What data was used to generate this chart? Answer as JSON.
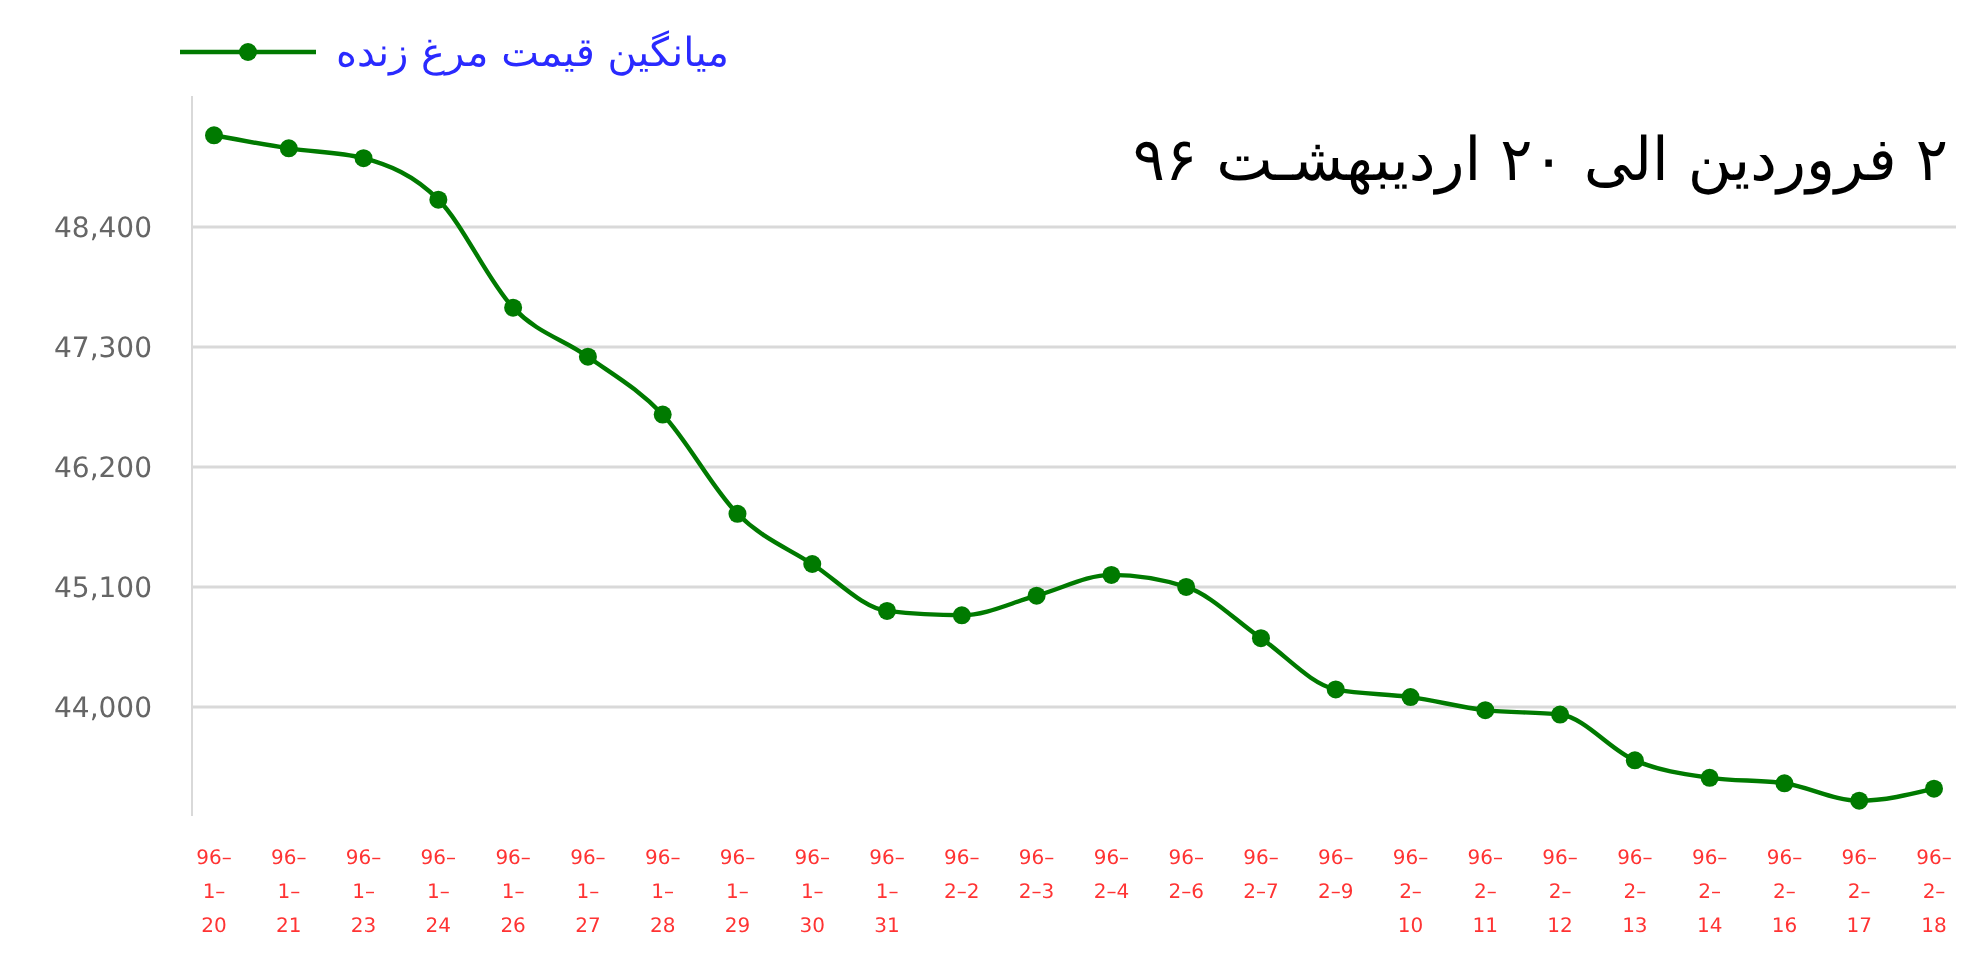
{
  "chart_data": {
    "type": "line",
    "title": "۲ فروردین الی ۲۰ اردیبهشـت ۹۶",
    "categories": [
      "96–1–20",
      "96–1–21",
      "96–1–23",
      "96–1–24",
      "96–1–26",
      "96–1–27",
      "96–1–28",
      "96–1–29",
      "96–1–30",
      "96–1–31",
      "96–2–2",
      "96–2–3",
      "96–2–4",
      "96–2–6",
      "96–2–7",
      "96–2–9",
      "96–2–10",
      "96–2–11",
      "96–2–12",
      "96–2–13",
      "96–2–14",
      "96–2–16",
      "96–2–17",
      "96–2–18"
    ],
    "series": [
      {
        "name": "میانگین قیمت مرغ زنده",
        "color": "#007a00",
        "values": [
          49240,
          49120,
          49030,
          48650,
          47660,
          47210,
          46680,
          45770,
          45310,
          44880,
          44840,
          45020,
          45210,
          45100,
          44630,
          44160,
          44090,
          43970,
          43930,
          43510,
          43350,
          43300,
          43140,
          43250
        ]
      }
    ],
    "ylim": [
      43000,
      49600
    ],
    "yticks": [
      {
        "value": 44000,
        "label": "44,000"
      },
      {
        "value": 45100,
        "label": "45,100"
      },
      {
        "value": 46200,
        "label": "46,200"
      },
      {
        "value": 47300,
        "label": "47,300"
      },
      {
        "value": 48400,
        "label": "48,400"
      }
    ],
    "grid": "y",
    "legend": "top left",
    "marker": "circle",
    "line_style": "solid"
  }
}
